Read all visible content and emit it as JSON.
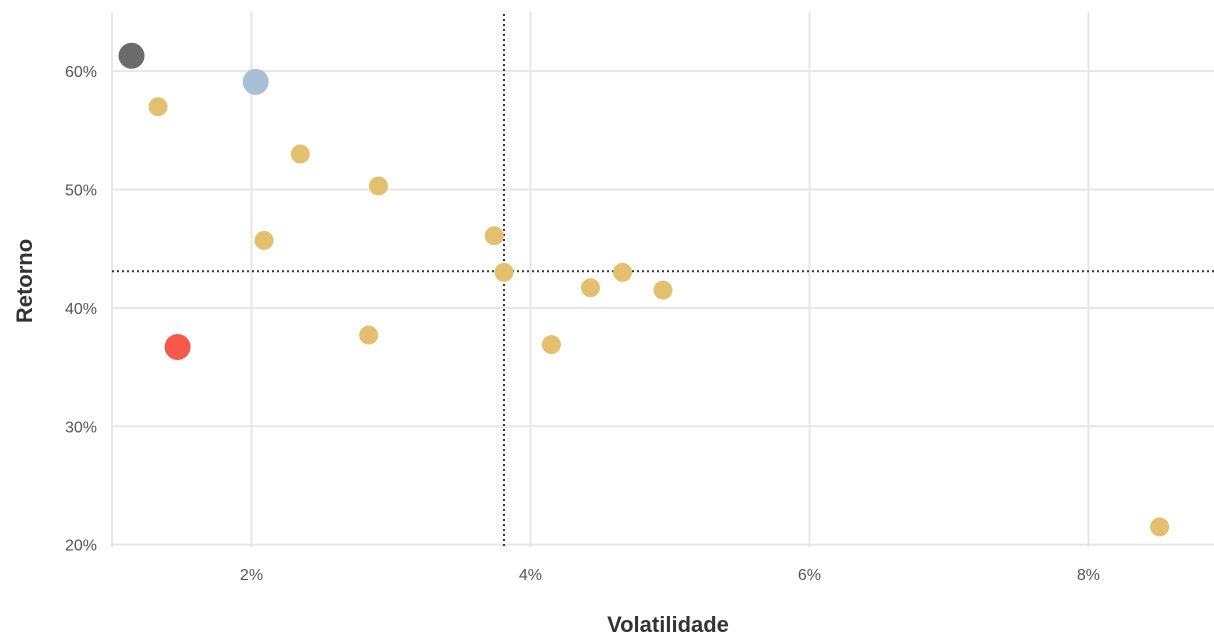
{
  "chart_data": {
    "type": "scatter",
    "title": "",
    "xlabel": "Volatilidade",
    "ylabel": "Retorno",
    "xlim": [
      1.0,
      8.9
    ],
    "ylim": [
      19.8,
      65.0
    ],
    "x_ticks": [
      2,
      4,
      6,
      8
    ],
    "x_tick_labels": [
      "2%",
      "4%",
      "6%",
      "8%"
    ],
    "y_ticks": [
      20,
      30,
      40,
      50,
      60
    ],
    "y_tick_labels": [
      "20%",
      "30%",
      "40%",
      "50%",
      "60%"
    ],
    "grid": true,
    "reference_lines": {
      "x": 3.81,
      "y": 43.1
    },
    "colors": {
      "default": "#e3c06f",
      "highlight_gray": "#6b6b6b",
      "highlight_blue": "#a8bfd6",
      "highlight_red": "#f6594b"
    },
    "points": [
      {
        "x": 1.14,
        "y": 61.3,
        "color": "#6b6b6b",
        "size": "large"
      },
      {
        "x": 2.03,
        "y": 59.1,
        "color": "#a8bfd6",
        "size": "large"
      },
      {
        "x": 1.47,
        "y": 36.7,
        "color": "#f6594b",
        "size": "large"
      },
      {
        "x": 1.33,
        "y": 57.0,
        "color": "#e3c06f",
        "size": "small"
      },
      {
        "x": 2.35,
        "y": 53.0,
        "color": "#e3c06f",
        "size": "small"
      },
      {
        "x": 2.91,
        "y": 50.3,
        "color": "#e3c06f",
        "size": "small"
      },
      {
        "x": 2.09,
        "y": 45.7,
        "color": "#e3c06f",
        "size": "small"
      },
      {
        "x": 3.74,
        "y": 46.1,
        "color": "#e3c06f",
        "size": "small"
      },
      {
        "x": 3.81,
        "y": 43.0,
        "color": "#e3c06f",
        "size": "small"
      },
      {
        "x": 4.43,
        "y": 41.7,
        "color": "#e3c06f",
        "size": "small"
      },
      {
        "x": 4.66,
        "y": 43.0,
        "color": "#e3c06f",
        "size": "small"
      },
      {
        "x": 4.95,
        "y": 41.5,
        "color": "#e3c06f",
        "size": "small"
      },
      {
        "x": 2.84,
        "y": 37.7,
        "color": "#e3c06f",
        "size": "small"
      },
      {
        "x": 4.15,
        "y": 36.9,
        "color": "#e3c06f",
        "size": "small"
      },
      {
        "x": 8.51,
        "y": 21.5,
        "color": "#e3c06f",
        "size": "small"
      }
    ]
  }
}
